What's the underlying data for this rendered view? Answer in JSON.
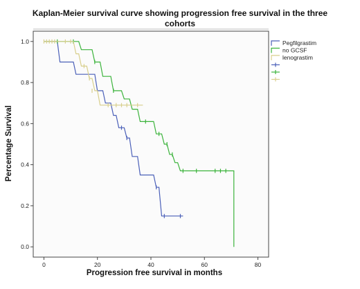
{
  "chart_data": {
    "type": "line",
    "title": "Kaplan-Meier survival curve showing progression free survival in the three cohorts",
    "title_lines": [
      "Kaplan-Meier survival curve showing progression free survival in the three",
      "cohorts"
    ],
    "xlabel": "Progression free survival in months",
    "ylabel": "Percentage Survival",
    "xlim": [
      -4,
      84
    ],
    "ylim": [
      -0.05,
      1.05
    ],
    "x_ticks": [
      0,
      20,
      40,
      60,
      80
    ],
    "y_ticks": [
      0.0,
      0.2,
      0.4,
      0.6,
      0.8,
      1.0
    ],
    "x_tick_labels": [
      "0",
      "20",
      "40",
      "60",
      "80"
    ],
    "y_tick_labels": [
      "0.0",
      "0.2",
      "0.4",
      "0.6",
      "0.8",
      "1.0"
    ],
    "grid": false,
    "legend_position": "top-right",
    "series": [
      {
        "name": "Pegfilgrastim",
        "color": "#4a5fb8",
        "step_points": [
          [
            0,
            1.0
          ],
          [
            5,
            1.0
          ],
          [
            6,
            0.9
          ],
          [
            11,
            0.9
          ],
          [
            12,
            0.84
          ],
          [
            19,
            0.84
          ],
          [
            20,
            0.76
          ],
          [
            22,
            0.76
          ],
          [
            23,
            0.7
          ],
          [
            25,
            0.7
          ],
          [
            26,
            0.64
          ],
          [
            27,
            0.64
          ],
          [
            28,
            0.58
          ],
          [
            30,
            0.58
          ],
          [
            31,
            0.53
          ],
          [
            32,
            0.53
          ],
          [
            33,
            0.44
          ],
          [
            35,
            0.44
          ],
          [
            36,
            0.35
          ],
          [
            41,
            0.35
          ],
          [
            42,
            0.29
          ],
          [
            43,
            0.29
          ],
          [
            44,
            0.15
          ],
          [
            52,
            0.15
          ]
        ],
        "censored": [
          [
            29,
            0.58
          ],
          [
            31,
            0.53
          ],
          [
            42,
            0.29
          ],
          [
            45,
            0.15
          ],
          [
            51,
            0.15
          ]
        ]
      },
      {
        "name": "no GCSF",
        "color": "#3bb33b",
        "step_points": [
          [
            0,
            1.0
          ],
          [
            13,
            1.0
          ],
          [
            14,
            0.96
          ],
          [
            18,
            0.96
          ],
          [
            19,
            0.9
          ],
          [
            21,
            0.9
          ],
          [
            22,
            0.83
          ],
          [
            25,
            0.83
          ],
          [
            26,
            0.76
          ],
          [
            29,
            0.76
          ],
          [
            30,
            0.72
          ],
          [
            32,
            0.72
          ],
          [
            33,
            0.67
          ],
          [
            35,
            0.67
          ],
          [
            36,
            0.61
          ],
          [
            41,
            0.61
          ],
          [
            42,
            0.55
          ],
          [
            44,
            0.55
          ],
          [
            45,
            0.5
          ],
          [
            46,
            0.5
          ],
          [
            47,
            0.45
          ],
          [
            48,
            0.45
          ],
          [
            49,
            0.41
          ],
          [
            50,
            0.41
          ],
          [
            51,
            0.37
          ],
          [
            71,
            0.37
          ],
          [
            71,
            0.0
          ]
        ],
        "censored": [
          [
            5,
            1.0
          ],
          [
            11,
            1.0
          ],
          [
            19,
            0.9
          ],
          [
            26,
            0.76
          ],
          [
            38,
            0.61
          ],
          [
            43,
            0.55
          ],
          [
            46,
            0.5
          ],
          [
            48,
            0.45
          ],
          [
            52,
            0.37
          ],
          [
            57,
            0.37
          ],
          [
            64,
            0.37
          ],
          [
            66,
            0.37
          ],
          [
            68,
            0.37
          ]
        ]
      },
      {
        "name": "lenograstim",
        "color": "#d8cf8c",
        "step_points": [
          [
            0,
            1.0
          ],
          [
            11,
            1.0
          ],
          [
            12,
            0.94
          ],
          [
            13,
            0.94
          ],
          [
            14,
            0.88
          ],
          [
            16,
            0.88
          ],
          [
            17,
            0.82
          ],
          [
            18,
            0.82
          ],
          [
            19,
            0.76
          ],
          [
            20,
            0.76
          ],
          [
            21,
            0.69
          ],
          [
            37,
            0.69
          ]
        ],
        "censored": [
          [
            0,
            1.0
          ],
          [
            1,
            1.0
          ],
          [
            2,
            1.0
          ],
          [
            3,
            1.0
          ],
          [
            4,
            1.0
          ],
          [
            8,
            1.0
          ],
          [
            10,
            1.0
          ],
          [
            15,
            0.88
          ],
          [
            17,
            0.82
          ],
          [
            18,
            0.76
          ],
          [
            24,
            0.69
          ],
          [
            27,
            0.69
          ],
          [
            29,
            0.69
          ],
          [
            31,
            0.69
          ],
          [
            35,
            0.69
          ]
        ]
      }
    ]
  }
}
